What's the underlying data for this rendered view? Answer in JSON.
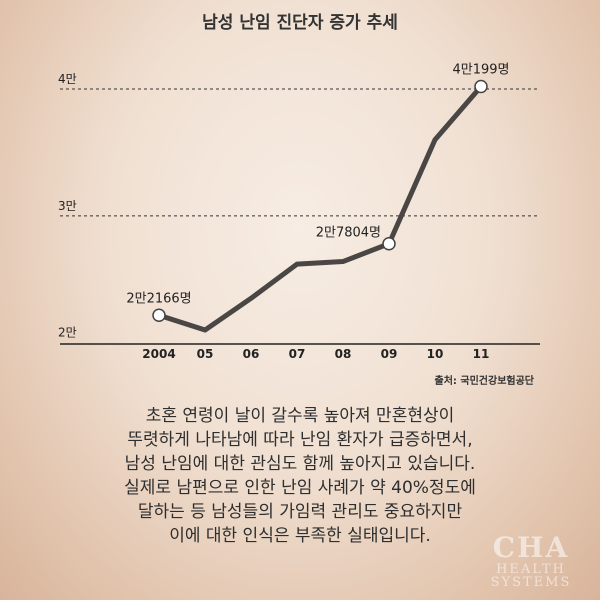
{
  "chart_data": {
    "type": "line",
    "title": "남성 난임 진단자 증가 추세",
    "categories": [
      "2004",
      "05",
      "06",
      "07",
      "08",
      "09",
      "10",
      "11"
    ],
    "values": [
      22166,
      21000,
      23500,
      26200,
      26400,
      27804,
      36000,
      40199
    ],
    "y_ticks": [
      {
        "value": 20000,
        "label": "2만"
      },
      {
        "value": 30000,
        "label": "3만"
      },
      {
        "value": 40000,
        "label": "4만"
      }
    ],
    "ylim": [
      19900,
      41500
    ],
    "grid": "dashed at 3만 and 4만",
    "data_labels": [
      {
        "index": 0,
        "text": "2만2166명"
      },
      {
        "index": 5,
        "text": "2만7804명"
      },
      {
        "index": 7,
        "text": "4만199명"
      }
    ],
    "source": "출처: 국민건강보험공단",
    "colors": {
      "line": "#4a4644",
      "marker_fill": "#ffffff",
      "axis": "#222222"
    }
  },
  "caption": {
    "lines": [
      "초혼 연령이 날이 갈수록 높아져 만혼현상이",
      "뚜렷하게 나타남에 따라 난임 환자가 급증하면서,",
      "남성 난임에 대한 관심도 함께 높아지고 있습니다.",
      "실제로 남편으로 인한 난임 사례가 약 40%정도에",
      "달하는 등 남성들의 가임력 관리도 중요하지만",
      "이에 대한 인식은 부족한 실태입니다."
    ]
  },
  "watermark": {
    "line1": "CHA",
    "line2": "HEALTH",
    "line3": "SYSTEMS"
  }
}
